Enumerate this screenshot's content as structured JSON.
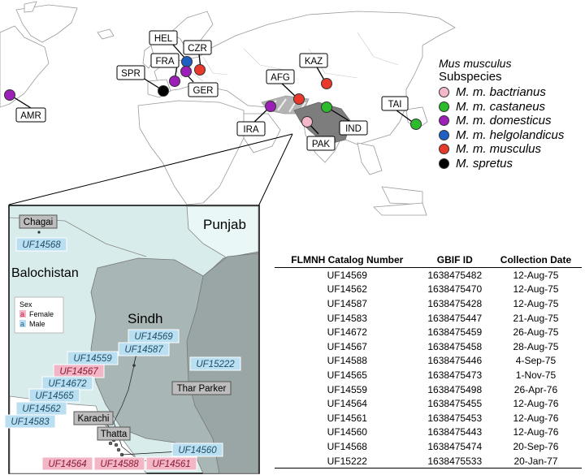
{
  "world_labels": [
    {
      "code": "HEL",
      "color": "#1f5fc4"
    },
    {
      "code": "CZR",
      "color": "#e8392a"
    },
    {
      "code": "FRA",
      "color": "#9b1fb8"
    },
    {
      "code": "SPR",
      "color": "#000000"
    },
    {
      "code": "GER",
      "color": "#9b1fb8"
    },
    {
      "code": "KAZ",
      "color": "#e8392a"
    },
    {
      "code": "AFG",
      "color": "#e8392a"
    },
    {
      "code": "AMR",
      "color": "#9b1fb8"
    },
    {
      "code": "IRA",
      "color": "#9b1fb8"
    },
    {
      "code": "IND",
      "color": "#2bbb2b"
    },
    {
      "code": "TAI",
      "color": "#2bbb2b"
    },
    {
      "code": "PAK",
      "color": "#f5b8c8"
    }
  ],
  "legend": {
    "title_species": "Mus musculus",
    "title_sub": "Subspecies",
    "items": [
      {
        "label": "M. m. bactrianus",
        "color": "#f5b8c8"
      },
      {
        "label": "M. m. castaneus",
        "color": "#2bbb2b"
      },
      {
        "label": "M. m. domesticus",
        "color": "#9b1fb8"
      },
      {
        "label": "M. m. helgolandicus",
        "color": "#1f5fc4"
      },
      {
        "label": "M. m. musculus",
        "color": "#e8392a"
      },
      {
        "label": "M. spretus",
        "color": "#000000"
      }
    ]
  },
  "inset": {
    "regions": [
      "Chagai",
      "Punjab",
      "Balochistan",
      "Sindh",
      "Thar Parker",
      "Karachi",
      "Thatta"
    ],
    "sex_legend": {
      "title": "Sex",
      "items": [
        {
          "glyph": "a",
          "label": "Female",
          "color": "#f3b6c6"
        },
        {
          "glyph": "a",
          "label": "Male",
          "color": "#b9dff0"
        }
      ]
    },
    "specimens": [
      {
        "id": "UF14568",
        "sex": "male"
      },
      {
        "id": "UF14569",
        "sex": "male"
      },
      {
        "id": "UF14587",
        "sex": "male"
      },
      {
        "id": "UF14559",
        "sex": "male"
      },
      {
        "id": "UF14567",
        "sex": "female"
      },
      {
        "id": "UF14672",
        "sex": "male"
      },
      {
        "id": "UF14565",
        "sex": "male"
      },
      {
        "id": "UF14562",
        "sex": "male"
      },
      {
        "id": "UF14583",
        "sex": "male"
      },
      {
        "id": "UF15222",
        "sex": "male"
      },
      {
        "id": "UF14560",
        "sex": "male"
      },
      {
        "id": "UF14564",
        "sex": "female"
      },
      {
        "id": "UF14588",
        "sex": "female"
      },
      {
        "id": "UF14561",
        "sex": "female"
      }
    ]
  },
  "table": {
    "headers": [
      "FLMNH Catalog Number",
      "GBIF ID",
      "Collection Date"
    ],
    "rows": [
      [
        "UF14569",
        "1638475482",
        "12-Aug-75"
      ],
      [
        "UF14562",
        "1638475470",
        "12-Aug-75"
      ],
      [
        "UF14587",
        "1638475428",
        "12-Aug-75"
      ],
      [
        "UF14583",
        "1638475447",
        "21-Aug-75"
      ],
      [
        "UF14672",
        "1638475459",
        "26-Aug-75"
      ],
      [
        "UF14567",
        "1638475458",
        "28-Aug-75"
      ],
      [
        "UF14588",
        "1638475446",
        "4-Sep-75"
      ],
      [
        "UF14565",
        "1638475473",
        "1-Nov-75"
      ],
      [
        "UF14559",
        "1638475498",
        "26-Apr-76"
      ],
      [
        "UF14564",
        "1638475455",
        "12-Aug-76"
      ],
      [
        "UF14561",
        "1638475453",
        "12-Aug-76"
      ],
      [
        "UF14560",
        "1638475443",
        "12-Aug-76"
      ],
      [
        "UF14568",
        "1638475474",
        "20-Sep-76"
      ],
      [
        "UF15222",
        "1638475533",
        "20-Jan-77"
      ]
    ]
  }
}
